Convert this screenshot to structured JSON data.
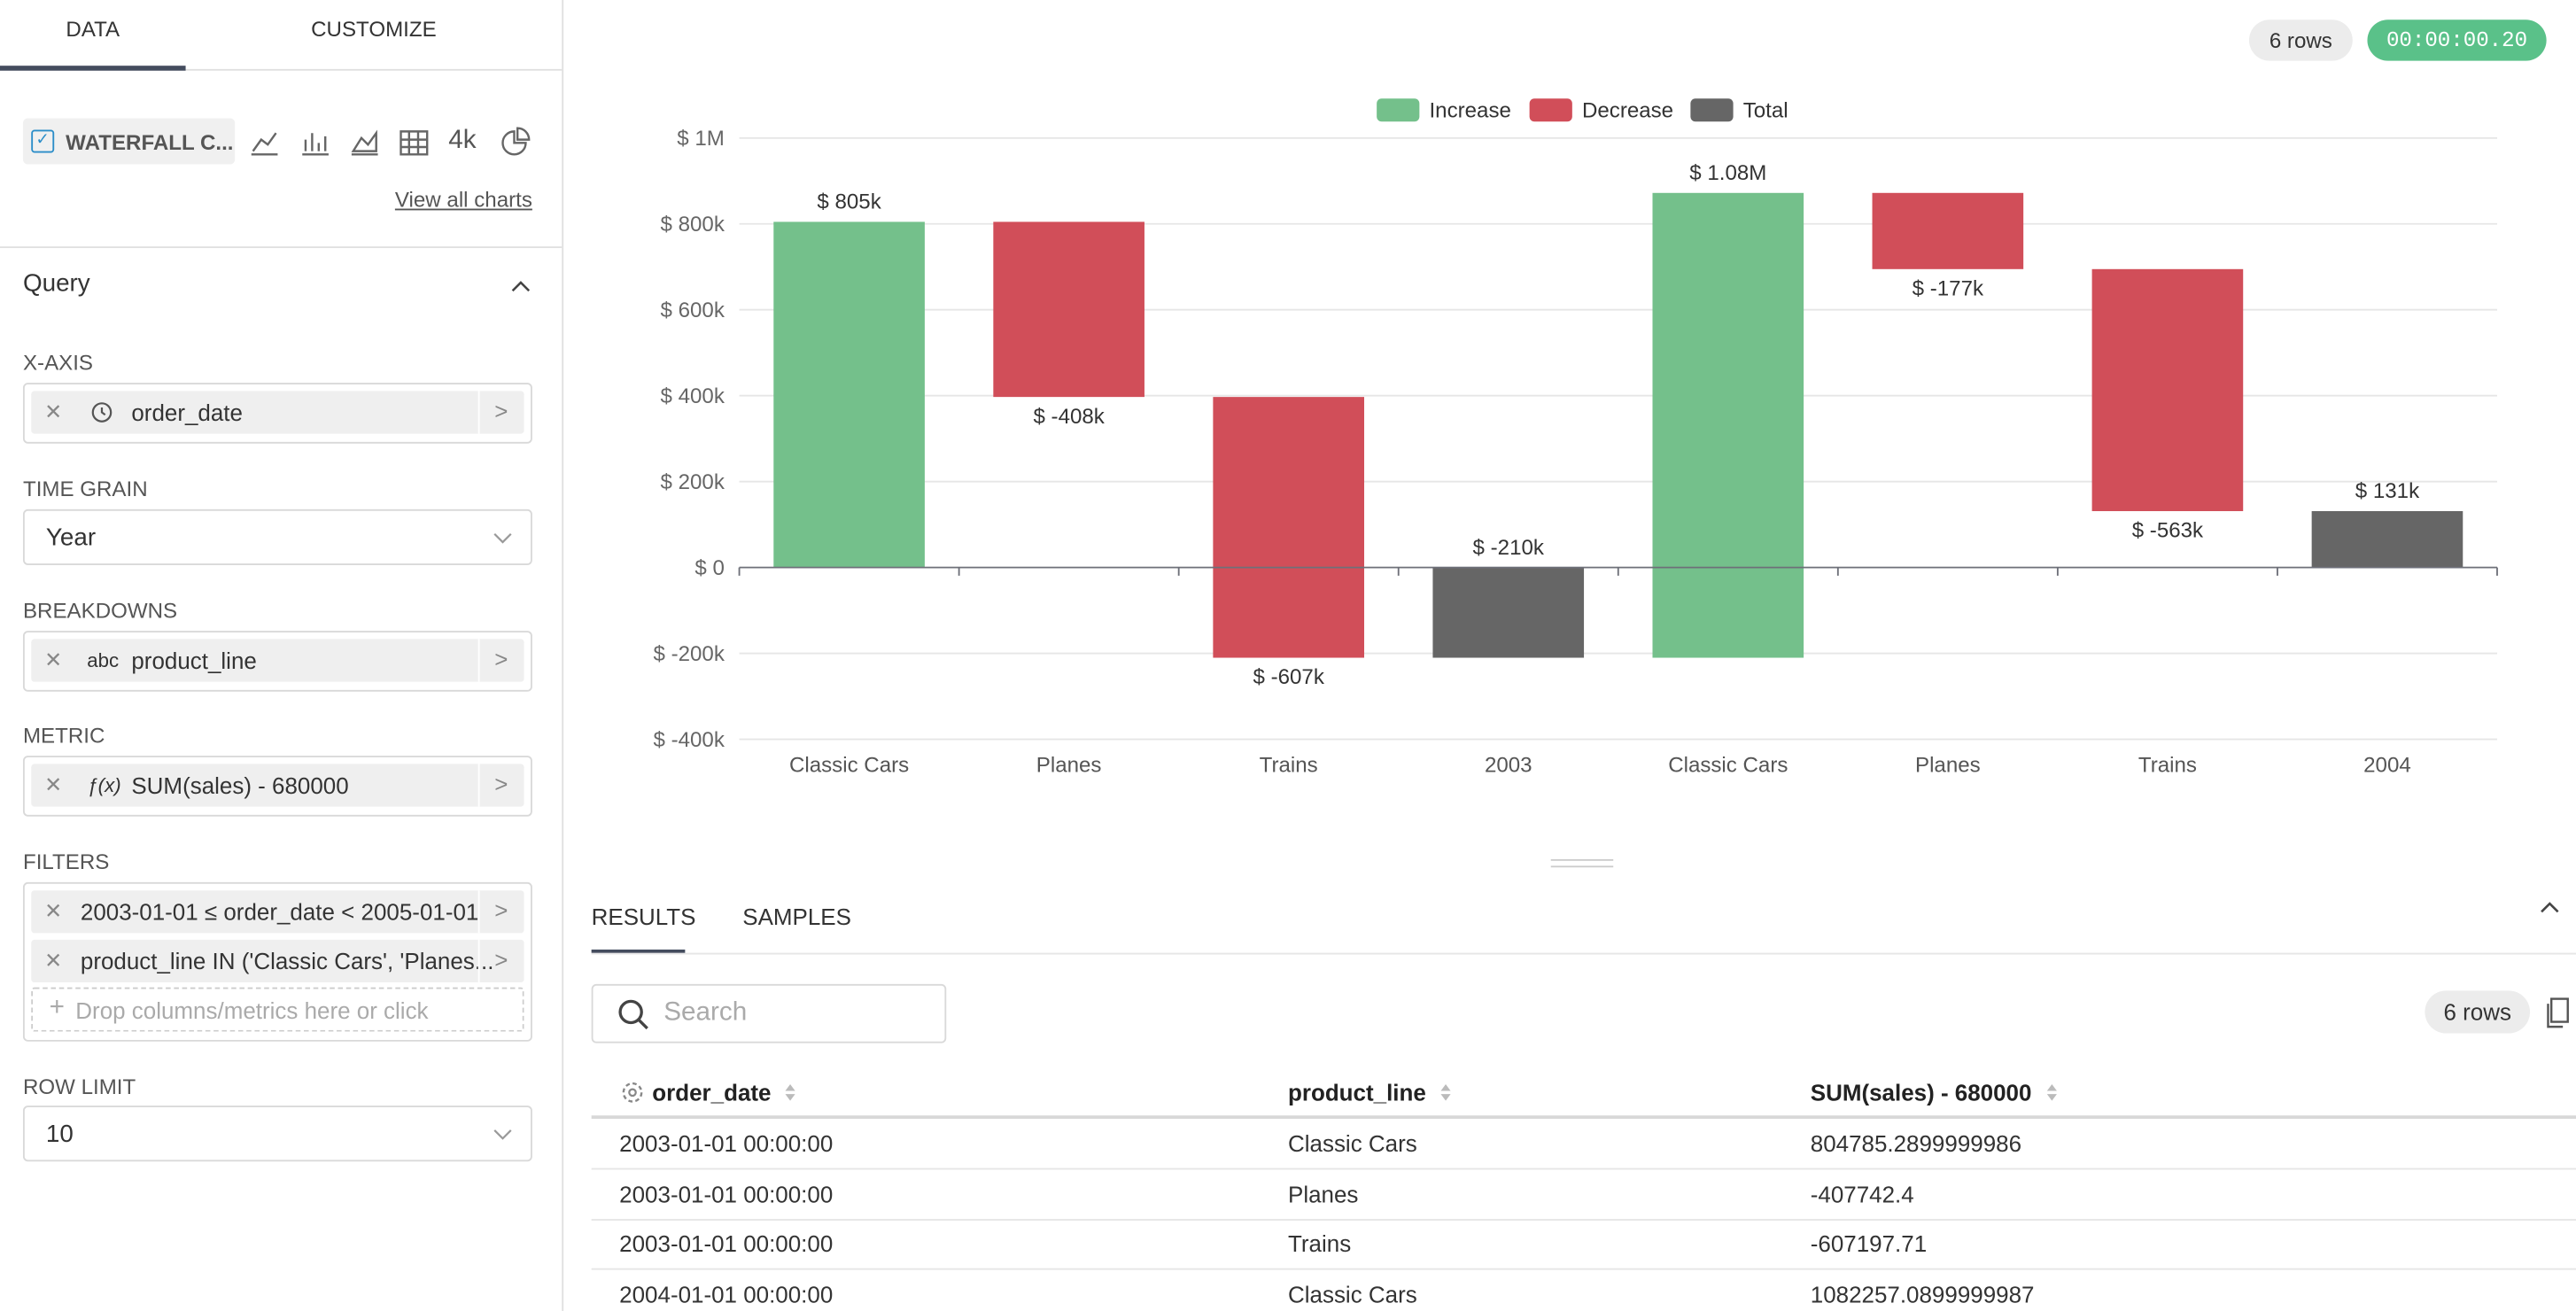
{
  "sidebar": {
    "tabs": [
      "DATA",
      "CUSTOMIZE"
    ],
    "chart_name": "WATERFALL C...",
    "big_number_icon": "4k",
    "view_all": "View all charts",
    "query_title": "Query",
    "x_axis": {
      "label": "X-AXIS",
      "value": "order_date"
    },
    "time_grain": {
      "label": "TIME GRAIN",
      "value": "Year"
    },
    "breakdowns": {
      "label": "BREAKDOWNS",
      "prefix": "abc",
      "value": "product_line"
    },
    "metric": {
      "label": "METRIC",
      "prefix": "ƒ(x)",
      "value": "SUM(sales) - 680000"
    },
    "filters": {
      "label": "FILTERS",
      "items": [
        "2003-01-01 ≤ order_date < 2005-01-01",
        "product_line IN ('Classic Cars', 'Planes..."
      ],
      "placeholder": "Drop columns/metrics here or click"
    },
    "row_limit": {
      "label": "ROW LIMIT",
      "value": "10"
    }
  },
  "header": {
    "row_count": "6 rows",
    "timer": "00:00:00.20"
  },
  "chart_data": {
    "type": "waterfall",
    "categories": [
      "Classic Cars",
      "Planes",
      "Trains",
      "2003",
      "Classic Cars",
      "Planes",
      "Trains",
      "2004"
    ],
    "values": [
      804785.29,
      -407742.4,
      -607197.71,
      -210154.82,
      1082257.09,
      -177400,
      -563500,
      131202.27
    ],
    "value_labels": [
      "$ 805k",
      "$ -408k",
      "$ -607k",
      "$ -210k",
      "$ 1.08M",
      "$ -177k",
      "$ -563k",
      "$ 131k"
    ],
    "is_total": [
      false,
      false,
      false,
      true,
      false,
      false,
      false,
      true
    ],
    "legend": [
      {
        "name": "Increase",
        "color": "#74c08b"
      },
      {
        "name": "Decrease",
        "color": "#d14e59"
      },
      {
        "name": "Total",
        "color": "#666666"
      }
    ],
    "ylim": [
      -400000,
      1000000
    ],
    "yticks": [
      {
        "value": -400000,
        "label": "$ -400k"
      },
      {
        "value": -200000,
        "label": "$ -200k"
      },
      {
        "value": 0,
        "label": "$ 0"
      },
      {
        "value": 200000,
        "label": "$ 200k"
      },
      {
        "value": 400000,
        "label": "$ 400k"
      },
      {
        "value": 600000,
        "label": "$ 600k"
      },
      {
        "value": 800000,
        "label": "$ 800k"
      },
      {
        "value": 1000000,
        "label": "$ 1M"
      }
    ],
    "grid": true
  },
  "results": {
    "tabs": [
      "RESULTS",
      "SAMPLES"
    ],
    "search_placeholder": "Search",
    "row_count": "6 rows",
    "columns": [
      "order_date",
      "product_line",
      "SUM(sales) - 680000"
    ],
    "rows": [
      [
        "2003-01-01 00:00:00",
        "Classic Cars",
        "804785.2899999986"
      ],
      [
        "2003-01-01 00:00:00",
        "Planes",
        "-407742.4"
      ],
      [
        "2003-01-01 00:00:00",
        "Trains",
        "-607197.71"
      ],
      [
        "2004-01-01 00:00:00",
        "Classic Cars",
        "1082257.0899999987"
      ]
    ]
  }
}
